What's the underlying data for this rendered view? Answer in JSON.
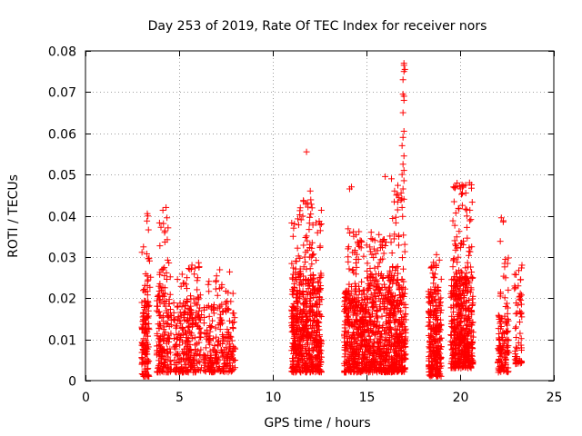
{
  "chart_data": {
    "type": "scatter",
    "title": "Day 253 of 2019, Rate Of TEC Index for receiver nors",
    "xlabel": "GPS time / hours",
    "ylabel": "ROTI / TECUs",
    "xlim": [
      0,
      25
    ],
    "ylim": [
      0,
      0.08
    ],
    "x_ticks": [
      0,
      5,
      10,
      15,
      20,
      25
    ],
    "y_ticks": [
      "0",
      "0.01",
      "0.02",
      "0.03",
      "0.04",
      "0.05",
      "0.06",
      "0.07",
      "0.08"
    ],
    "grid": true,
    "marker": "+",
    "color": "#ff0000",
    "clusters": [
      {
        "x": [
          3.0,
          3.4
        ],
        "y": [
          0.001,
          0.02
        ],
        "n": 120
      },
      {
        "x": [
          3.0,
          3.5
        ],
        "y": [
          0.02,
          0.041
        ],
        "n": 22
      },
      {
        "x": [
          3.8,
          4.6
        ],
        "y": [
          0.002,
          0.022
        ],
        "n": 150
      },
      {
        "x": [
          3.9,
          4.6
        ],
        "y": [
          0.022,
          0.042
        ],
        "n": 26
      },
      {
        "x": [
          4.7,
          6.2
        ],
        "y": [
          0.002,
          0.02
        ],
        "n": 240
      },
      {
        "x": [
          4.9,
          6.2
        ],
        "y": [
          0.02,
          0.029
        ],
        "n": 24
      },
      {
        "x": [
          6.3,
          8.0
        ],
        "y": [
          0.002,
          0.018
        ],
        "n": 220
      },
      {
        "x": [
          6.5,
          8.0
        ],
        "y": [
          0.018,
          0.027
        ],
        "n": 24
      },
      {
        "x": [
          11.0,
          12.6
        ],
        "y": [
          0.002,
          0.025
        ],
        "n": 520
      },
      {
        "x": [
          11.0,
          12.6
        ],
        "y": [
          0.025,
          0.044
        ],
        "n": 80
      },
      {
        "x": [
          13.8,
          15.0
        ],
        "y": [
          0.002,
          0.022
        ],
        "n": 360
      },
      {
        "x": [
          14.0,
          15.0
        ],
        "y": [
          0.022,
          0.037
        ],
        "n": 40
      },
      {
        "x": [
          15.0,
          16.5
        ],
        "y": [
          0.002,
          0.025
        ],
        "n": 420
      },
      {
        "x": [
          15.0,
          16.5
        ],
        "y": [
          0.025,
          0.036
        ],
        "n": 50
      },
      {
        "x": [
          16.5,
          17.1
        ],
        "y": [
          0.002,
          0.025
        ],
        "n": 200
      },
      {
        "x": [
          16.3,
          17.1
        ],
        "y": [
          0.025,
          0.05
        ],
        "n": 30
      },
      {
        "x": [
          18.3,
          19.0
        ],
        "y": [
          0.001,
          0.022
        ],
        "n": 230
      },
      {
        "x": [
          18.4,
          19.0
        ],
        "y": [
          0.022,
          0.031
        ],
        "n": 22
      },
      {
        "x": [
          19.5,
          20.7
        ],
        "y": [
          0.003,
          0.025
        ],
        "n": 420
      },
      {
        "x": [
          19.6,
          20.7
        ],
        "y": [
          0.025,
          0.048
        ],
        "n": 70
      },
      {
        "x": [
          22.0,
          22.6
        ],
        "y": [
          0.002,
          0.016
        ],
        "n": 110
      },
      {
        "x": [
          22.1,
          22.6
        ],
        "y": [
          0.016,
          0.04
        ],
        "n": 18
      },
      {
        "x": [
          22.9,
          23.3
        ],
        "y": [
          0.004,
          0.028
        ],
        "n": 60
      }
    ],
    "points": [
      [
        4.35,
        0.0395
      ],
      [
        4.3,
        0.042
      ],
      [
        3.3,
        0.0405
      ],
      [
        11.8,
        0.0555
      ],
      [
        12.0,
        0.046
      ],
      [
        14.2,
        0.047
      ],
      [
        14.1,
        0.0465
      ],
      [
        16.0,
        0.0495
      ],
      [
        16.5,
        0.046
      ],
      [
        16.6,
        0.045
      ],
      [
        17.0,
        0.077
      ],
      [
        17.0,
        0.0765
      ],
      [
        17.05,
        0.0755
      ],
      [
        17.0,
        0.075
      ],
      [
        16.95,
        0.073
      ],
      [
        16.95,
        0.0695
      ],
      [
        17.0,
        0.069
      ],
      [
        17.0,
        0.068
      ],
      [
        16.95,
        0.065
      ],
      [
        17.0,
        0.0605
      ],
      [
        16.95,
        0.059
      ],
      [
        16.9,
        0.057
      ],
      [
        17.0,
        0.0545
      ],
      [
        16.95,
        0.0525
      ],
      [
        17.0,
        0.051
      ],
      [
        16.9,
        0.05
      ],
      [
        17.0,
        0.0485
      ],
      [
        16.95,
        0.0465
      ],
      [
        16.85,
        0.0455
      ],
      [
        17.0,
        0.044
      ],
      [
        16.9,
        0.042
      ],
      [
        20.1,
        0.0475
      ],
      [
        20.5,
        0.048
      ],
      [
        20.6,
        0.0475
      ],
      [
        20.3,
        0.0455
      ],
      [
        22.2,
        0.0395
      ],
      [
        22.3,
        0.0385
      ],
      [
        23.3,
        0.028
      ]
    ]
  }
}
